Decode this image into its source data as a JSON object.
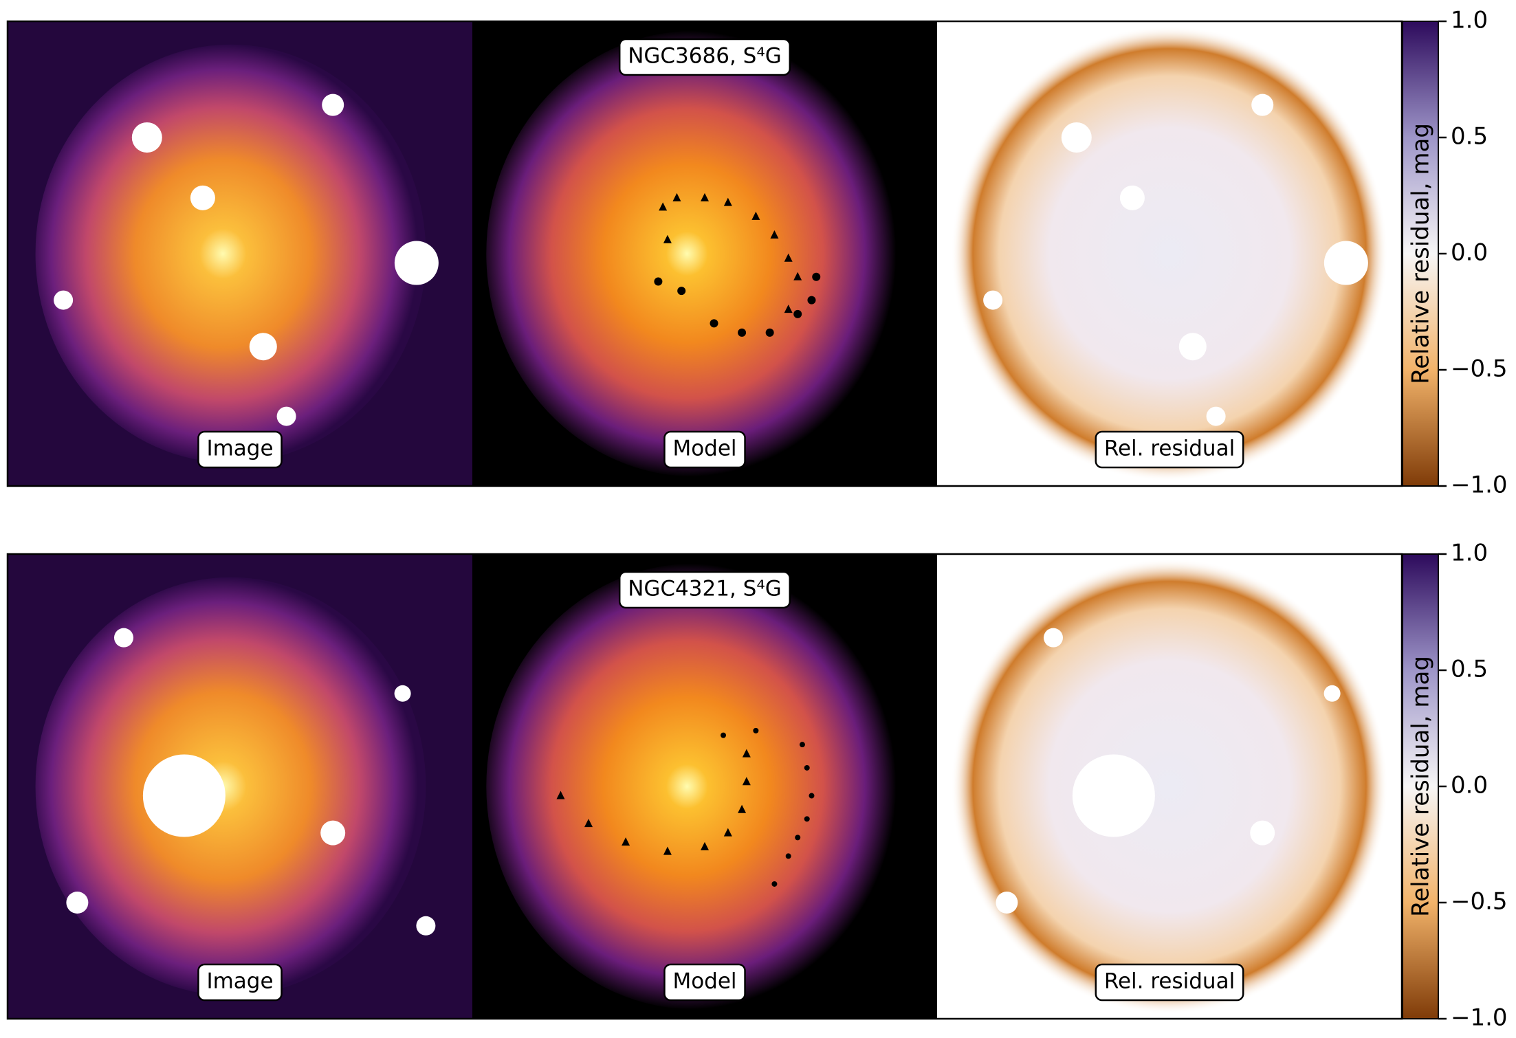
{
  "panels": [
    {
      "title": "NGC3686, S⁴G",
      "labels": {
        "image": "Image",
        "model": "Model",
        "residual": "Rel. residual"
      },
      "colorbar": {
        "label": "Relative residual, mag",
        "lim": [
          -1,
          1
        ],
        "ticks": [
          {
            "value": 1,
            "label": "1.0"
          },
          0.5,
          {
            "value": 0,
            "label": "0.0"
          },
          {
            "value": -0.5,
            "label": "−0.5"
          },
          {
            "value": -1,
            "label": "−1.0"
          }
        ]
      }
    },
    {
      "title": "NGC4321, S⁴G",
      "labels": {
        "image": "Image",
        "model": "Model",
        "residual": "Rel. residual"
      },
      "colorbar": {
        "label": "Relative residual, mag",
        "lim": [
          -1,
          1
        ],
        "ticks": [
          {
            "value": 1,
            "label": "1.0"
          },
          0.5,
          {
            "value": 0,
            "label": "0.0"
          },
          {
            "value": -0.5,
            "label": "−0.5"
          },
          {
            "value": -1,
            "label": "−1.0"
          }
        ]
      }
    }
  ]
}
